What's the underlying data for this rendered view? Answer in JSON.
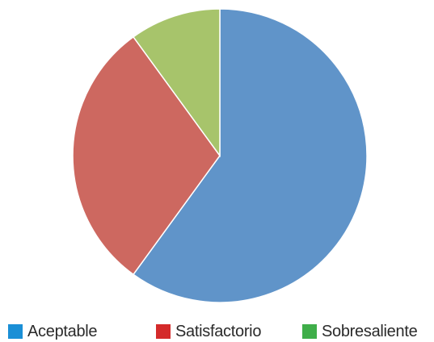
{
  "chart_data": {
    "type": "pie",
    "title": "",
    "slices": [
      {
        "label": "Aceptable",
        "value": 60,
        "color": "#6094c9"
      },
      {
        "label": "Satisfactorio",
        "value": 30,
        "color": "#cd6860"
      },
      {
        "label": "Sobresaliente",
        "value": 10,
        "color": "#a7c46b"
      }
    ],
    "start_angle_deg": 0,
    "direction": "clockwise",
    "legend": {
      "placement": "bottom",
      "items": [
        {
          "label": "Aceptable",
          "swatch_color": "#1a8fd6"
        },
        {
          "label": "Satisfactorio",
          "swatch_color": "#d42a2a"
        },
        {
          "label": "Sobresaliente",
          "swatch_color": "#3fae49"
        }
      ]
    }
  }
}
